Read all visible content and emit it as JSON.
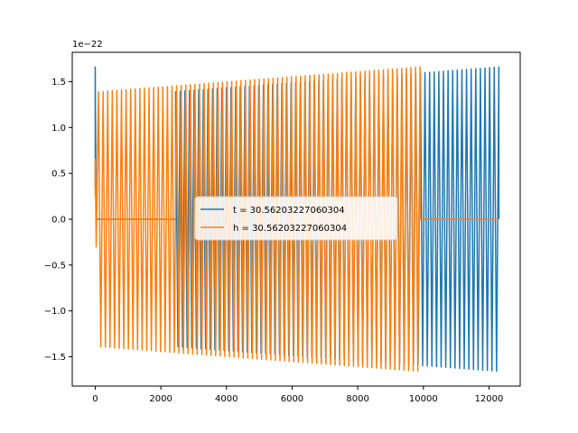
{
  "chart_data": {
    "type": "line",
    "title": "",
    "xlabel": "",
    "ylabel": "",
    "y_offset_text": "1e−22",
    "xlim": [
      -700,
      12950
    ],
    "ylim": [
      -1.82,
      1.82
    ],
    "x_ticks": [
      0,
      2000,
      4000,
      6000,
      8000,
      10000,
      12000
    ],
    "x_tick_labels": [
      "0",
      "2000",
      "4000",
      "6000",
      "8000",
      "10000",
      "12000"
    ],
    "y_ticks": [
      -1.5,
      -1.0,
      -0.5,
      0.0,
      0.5,
      1.0,
      1.5
    ],
    "y_tick_labels": [
      "−1.5",
      "−1.0",
      "−0.5",
      "0.0",
      "0.5",
      "1.0",
      "1.5"
    ],
    "grid": false,
    "legend_position": "center",
    "series": [
      {
        "name": "t = 30.56203227060304",
        "color": "#1f77b4",
        "x_start": 0,
        "x_end": 12300,
        "spike_amplitude": 1.66,
        "zero_from": 50,
        "zero_to": 2450,
        "burst_from": 2450,
        "burst_to": 12300,
        "amp_start": 1.39,
        "amp_end": 1.66,
        "cycles": 70
      },
      {
        "name": "h = 30.56203227060304",
        "color": "#ff7f0e",
        "x_start": 0,
        "x_end": 12300,
        "spike_amplitude": 0.65,
        "burst_from": 100,
        "burst_to": 9900,
        "zero_from": 9900,
        "zero_to": 12300,
        "amp_start": 1.39,
        "amp_end": 1.66,
        "cycles": 70,
        "gap_from": 100,
        "gap_to": 2400,
        "gap_zero": true
      }
    ]
  }
}
